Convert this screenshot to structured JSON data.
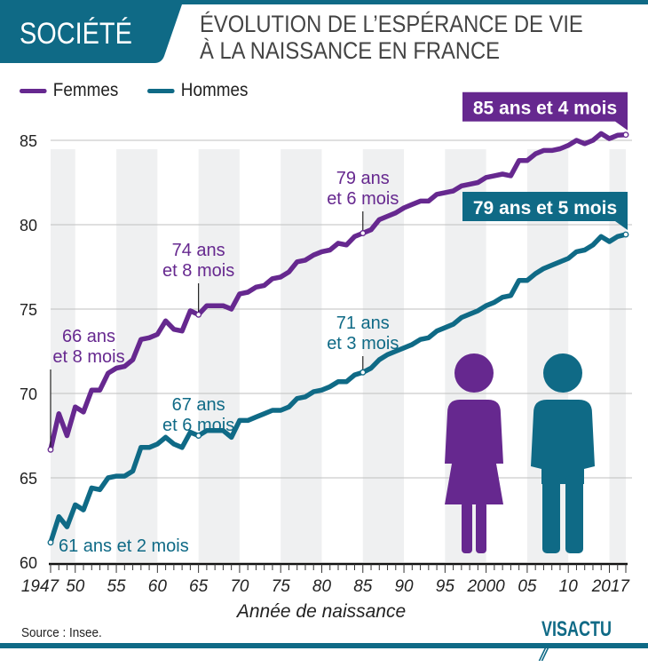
{
  "header": {
    "category_tag": "SOCIÉTÉ",
    "title_line1": "ÉVOLUTION DE L’ESPÉRANCE DE VIE",
    "title_line2": "À LA NAISSANCE EN FRANCE"
  },
  "colors": {
    "femmes": "#66288f",
    "hommes": "#0f6a86",
    "stripe": "#e8e9eb",
    "grid": "#bfbfbf"
  },
  "footer": {
    "source": "Source : Insee.",
    "logo": "VISACTU"
  },
  "chart_data": {
    "type": "line",
    "title": "Évolution de l’espérance de vie à la naissance en France",
    "xlabel": "Année de naissance",
    "ylabel": "",
    "xlim": [
      1947,
      2017
    ],
    "ylim": [
      60,
      85
    ],
    "y_ticks": [
      60,
      65,
      70,
      75,
      80,
      85
    ],
    "x_tick_labels": [
      {
        "year": 1947,
        "label": "1947"
      },
      {
        "year": 1950,
        "label": "50"
      },
      {
        "year": 1955,
        "label": "55"
      },
      {
        "year": 1960,
        "label": "60"
      },
      {
        "year": 1965,
        "label": "65"
      },
      {
        "year": 1970,
        "label": "70"
      },
      {
        "year": 1975,
        "label": "75"
      },
      {
        "year": 1980,
        "label": "80"
      },
      {
        "year": 1985,
        "label": "85"
      },
      {
        "year": 1990,
        "label": "90"
      },
      {
        "year": 1995,
        "label": "95"
      },
      {
        "year": 2000,
        "label": "2000"
      },
      {
        "year": 2005,
        "label": "05"
      },
      {
        "year": 2010,
        "label": "10"
      },
      {
        "year": 2017,
        "label": "2017"
      }
    ],
    "grid": true,
    "legend": "top-left",
    "x": [
      1947,
      1948,
      1949,
      1950,
      1951,
      1952,
      1953,
      1954,
      1955,
      1956,
      1957,
      1958,
      1959,
      1960,
      1961,
      1962,
      1963,
      1964,
      1965,
      1966,
      1967,
      1968,
      1969,
      1970,
      1971,
      1972,
      1973,
      1974,
      1975,
      1976,
      1977,
      1978,
      1979,
      1980,
      1981,
      1982,
      1983,
      1984,
      1985,
      1986,
      1987,
      1988,
      1989,
      1990,
      1991,
      1992,
      1993,
      1994,
      1995,
      1996,
      1997,
      1998,
      1999,
      2000,
      2001,
      2002,
      2003,
      2004,
      2005,
      2006,
      2007,
      2008,
      2009,
      2010,
      2011,
      2012,
      2013,
      2014,
      2015,
      2016,
      2017
    ],
    "series": [
      {
        "name": "Femmes",
        "values": [
          66.67,
          68.8,
          67.5,
          69.2,
          68.9,
          70.2,
          70.2,
          71.2,
          71.5,
          71.6,
          72.0,
          73.2,
          73.3,
          73.5,
          74.3,
          73.8,
          73.7,
          74.9,
          74.67,
          75.2,
          75.2,
          75.2,
          75.0,
          75.9,
          76.0,
          76.3,
          76.4,
          76.8,
          76.9,
          77.2,
          77.8,
          77.9,
          78.2,
          78.4,
          78.5,
          78.9,
          78.8,
          79.3,
          79.5,
          79.7,
          80.3,
          80.5,
          80.7,
          81.0,
          81.2,
          81.4,
          81.4,
          81.8,
          81.9,
          82.0,
          82.3,
          82.4,
          82.5,
          82.8,
          82.9,
          83.0,
          82.9,
          83.8,
          83.8,
          84.2,
          84.4,
          84.4,
          84.5,
          84.7,
          85.0,
          84.8,
          85.0,
          85.4,
          85.1,
          85.3,
          85.33
        ]
      },
      {
        "name": "Hommes",
        "values": [
          61.17,
          62.7,
          62.1,
          63.4,
          63.1,
          64.4,
          64.3,
          65.0,
          65.1,
          65.1,
          65.4,
          66.8,
          66.8,
          67.0,
          67.4,
          67.0,
          66.8,
          67.7,
          67.5,
          67.8,
          67.8,
          67.8,
          67.4,
          68.4,
          68.4,
          68.6,
          68.8,
          69.0,
          69.0,
          69.2,
          69.7,
          69.8,
          70.1,
          70.2,
          70.4,
          70.7,
          70.7,
          71.1,
          71.25,
          71.5,
          72.0,
          72.3,
          72.5,
          72.7,
          72.9,
          73.2,
          73.3,
          73.7,
          73.9,
          74.1,
          74.5,
          74.7,
          74.9,
          75.2,
          75.4,
          75.7,
          75.8,
          76.7,
          76.7,
          77.1,
          77.4,
          77.6,
          77.8,
          78.0,
          78.4,
          78.5,
          78.8,
          79.3,
          79.0,
          79.3,
          79.42
        ]
      }
    ],
    "annotations": [
      {
        "series": "Femmes",
        "year": 1947,
        "value": 66.67,
        "line1": "66 ans",
        "line2": "et 8 mois"
      },
      {
        "series": "Femmes",
        "year": 1965,
        "value": 74.67,
        "line1": "74 ans",
        "line2": "et 8 mois"
      },
      {
        "series": "Femmes",
        "year": 1985,
        "value": 79.5,
        "line1": "79 ans",
        "line2": "et 6 mois"
      },
      {
        "series": "Femmes",
        "year": 2017,
        "value": 85.33,
        "line1": "85 ans et 4 mois",
        "line2": "",
        "boxed": true
      },
      {
        "series": "Hommes",
        "year": 1947,
        "value": 61.17,
        "line1": "61 ans et 2 mois",
        "line2": ""
      },
      {
        "series": "Hommes",
        "year": 1965,
        "value": 67.5,
        "line1": "67 ans",
        "line2": "et 6 mois"
      },
      {
        "series": "Hommes",
        "year": 1985,
        "value": 71.25,
        "line1": "71 ans",
        "line2": "et 3 mois"
      },
      {
        "series": "Hommes",
        "year": 2017,
        "value": 79.42,
        "line1": "79 ans et 5 mois",
        "line2": "",
        "boxed": true
      }
    ]
  }
}
